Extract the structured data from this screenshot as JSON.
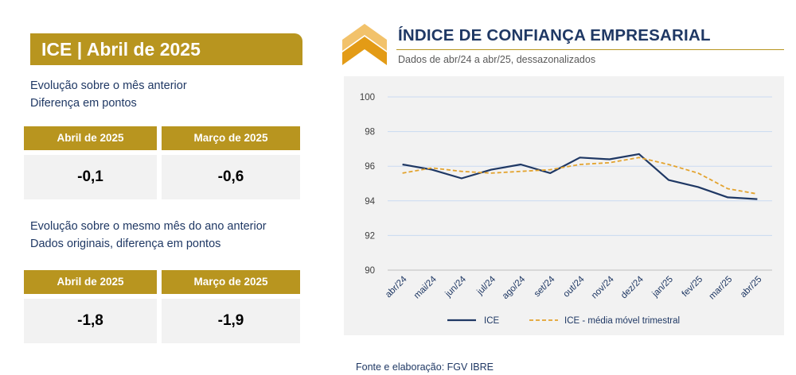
{
  "panel": {
    "title": "ICE | Abril de 2025",
    "section1": {
      "line1": "Evolução sobre o mês anterior",
      "line2": "Diferença em pontos",
      "headers": [
        "Abril de 2025",
        "Março de 2025"
      ],
      "values": [
        "-0,1",
        "-0,6"
      ]
    },
    "section2": {
      "line1": "Evolução sobre o mesmo mês do ano anterior",
      "line2": "Dados originais, diferença em pontos",
      "headers": [
        "Abril de 2025",
        "Março de 2025"
      ],
      "values": [
        "-1,8",
        "-1,9"
      ]
    }
  },
  "chart": {
    "title": "ÍNDICE DE CONFIANÇA EMPRESARIAL",
    "subtitle": "Dados de abr/24 a abr/25, dessazonalizados"
  },
  "source": "Fonte e elaboração: FGV IBRE",
  "colors": {
    "gold": "#b8951f",
    "navy": "#1f3864",
    "series_ice": "#1f3864",
    "series_mm": "#e3a32e"
  },
  "chart_data": {
    "type": "line",
    "categories": [
      "abr/24",
      "mai/24",
      "jun/24",
      "jul/24",
      "ago/24",
      "set/24",
      "out/24",
      "nov/24",
      "dez/24",
      "jan/25",
      "fev/25",
      "mar/25",
      "abr/25"
    ],
    "series": [
      {
        "name": "ICE",
        "values": [
          96.1,
          95.8,
          95.3,
          95.8,
          96.1,
          95.6,
          96.5,
          96.4,
          96.7,
          95.2,
          94.8,
          94.2,
          94.1
        ]
      },
      {
        "name": "ICE - média móvel trimestral",
        "values": [
          95.6,
          95.9,
          95.7,
          95.6,
          95.7,
          95.8,
          96.1,
          96.2,
          96.5,
          96.1,
          95.6,
          94.7,
          94.4
        ]
      }
    ],
    "yticks": [
      "100",
      "98",
      "96",
      "94",
      "92",
      "90"
    ],
    "ylim": [
      90,
      100
    ],
    "grid": true,
    "legend": "bottom"
  }
}
